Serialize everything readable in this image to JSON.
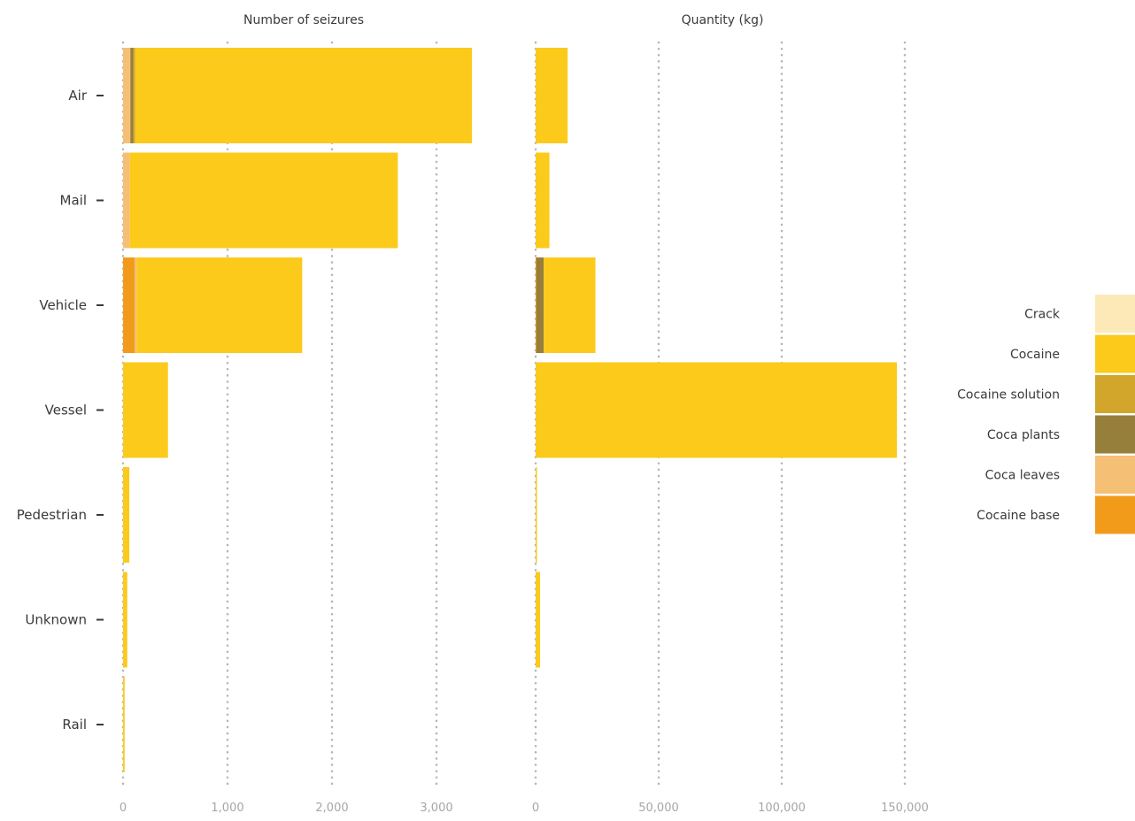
{
  "chart_data": {
    "type": "bar",
    "orientation": "horizontal",
    "stacked": true,
    "categories": [
      "Air",
      "Mail",
      "Vehicle",
      "Vessel",
      "Pedestrian",
      "Unknown",
      "Rail"
    ],
    "legend": {
      "placement": "right",
      "items": [
        "Crack",
        "Cocaine",
        "Cocaine solution",
        "Coca plants",
        "Coca leaves",
        "Cocaine base"
      ]
    },
    "colors": {
      "Crack": "#fde9b8",
      "Cocaine": "#fbca1b",
      "Cocaine solution": "#d2a52b",
      "Coca plants": "#967e3b",
      "Coca leaves": "#f5bf76",
      "Cocaine base": "#f29b1b"
    },
    "grid": "vertical dotted",
    "panels": [
      {
        "title": "Number of seizures",
        "xlim": [
          0,
          3500
        ],
        "ticks": [
          0,
          1000,
          2000,
          3000
        ],
        "tick_labels": [
          "0",
          "1,000",
          "2,000",
          "3,000"
        ],
        "series": [
          {
            "name": "Cocaine base",
            "values": [
              0,
              0,
              110,
              0,
              0,
              0,
              0
            ]
          },
          {
            "name": "Coca leaves",
            "values": [
              70,
              65,
              20,
              0,
              0,
              0,
              0
            ]
          },
          {
            "name": "Coca plants",
            "values": [
              30,
              0,
              0,
              0,
              0,
              0,
              0
            ]
          },
          {
            "name": "Cocaine solution",
            "values": [
              15,
              0,
              0,
              0,
              0,
              0,
              0
            ]
          },
          {
            "name": "Cocaine",
            "values": [
              3225,
              2565,
              1585,
              430,
              60,
              40,
              15
            ]
          },
          {
            "name": "Crack",
            "values": [
              0,
              0,
              0,
              0,
              0,
              0,
              0
            ]
          }
        ]
      },
      {
        "title": "Quantity (kg)",
        "xlim": [
          0,
          150000
        ],
        "ticks": [
          0,
          50000,
          100000,
          150000
        ],
        "tick_labels": [
          "0",
          "50,000",
          "100,000",
          "150,000"
        ],
        "series": [
          {
            "name": "Cocaine base",
            "values": [
              0,
              0,
              300,
              0,
              0,
              0,
              0
            ]
          },
          {
            "name": "Coca leaves",
            "values": [
              0,
              0,
              0,
              0,
              0,
              0,
              0
            ]
          },
          {
            "name": "Coca plants",
            "values": [
              0,
              0,
              3000,
              0,
              0,
              0,
              0
            ]
          },
          {
            "name": "Cocaine solution",
            "values": [
              0,
              0,
              0,
              0,
              0,
              0,
              0
            ]
          },
          {
            "name": "Cocaine",
            "values": [
              13000,
              5600,
              21000,
              146800,
              500,
              1800,
              0
            ]
          },
          {
            "name": "Crack",
            "values": [
              0,
              0,
              0,
              0,
              0,
              0,
              0
            ]
          }
        ]
      }
    ]
  }
}
